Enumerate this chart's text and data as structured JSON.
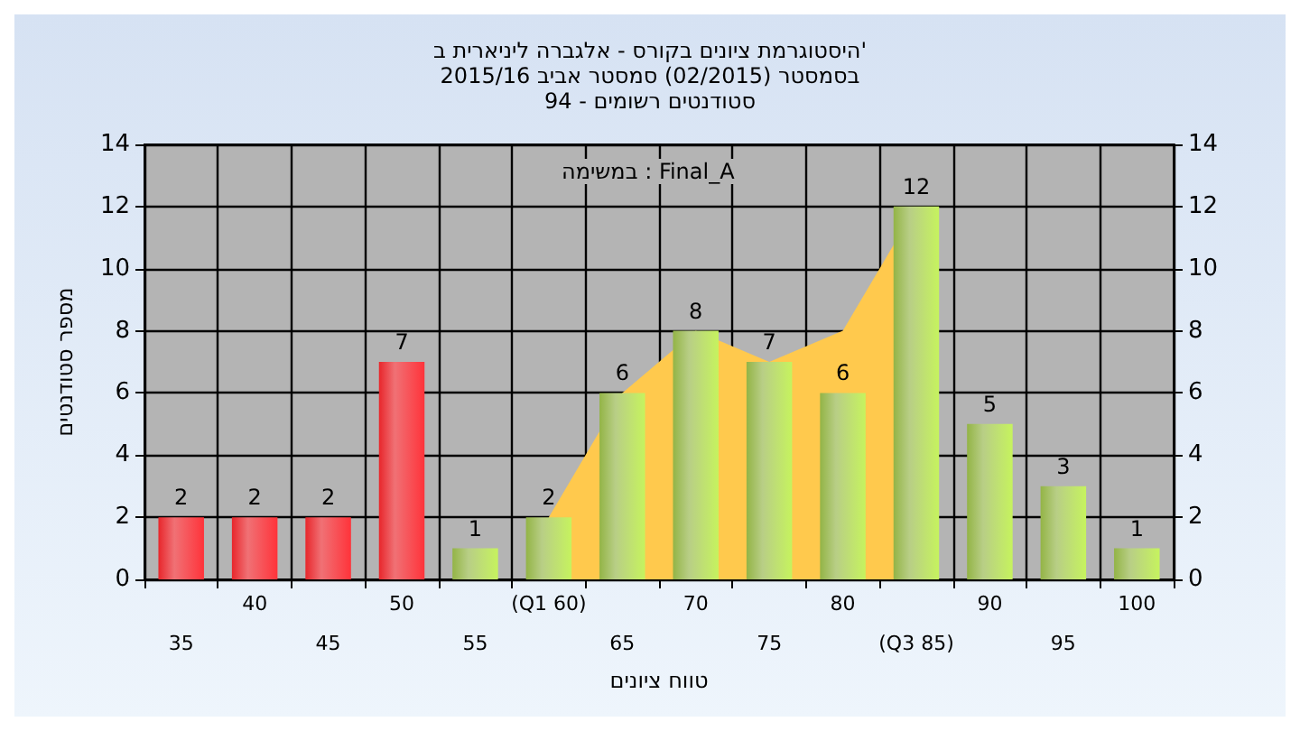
{
  "chart_data": {
    "type": "bar",
    "title": "היסטוגרמת ציונים בקורס - אלגברה ליניארית ב'\nבסמסטר (02/2015) סמסטר אביב 2015/16\nסטודנטים רשומים - 94",
    "xlabel": "טווח ציונים",
    "ylabel": "מספר סטודנטים",
    "annotations": [
      "במשימה : Final_A"
    ],
    "categories": [
      "35",
      "40",
      "45",
      "50",
      "55",
      "(Q1 60)",
      "65",
      "70",
      "75",
      "80",
      "(Q3 85)",
      "90",
      "95",
      "100"
    ],
    "series": [
      {
        "type": "area",
        "color": "#ffc94d",
        "values": [
          null,
          null,
          null,
          null,
          null,
          2,
          6,
          8,
          7,
          8,
          12,
          null,
          null,
          null
        ],
        "value_labels": [
          null,
          null,
          null,
          null,
          null,
          null,
          null,
          null,
          null,
          null,
          null,
          null,
          null,
          null
        ]
      },
      {
        "values": [
          2,
          2,
          2,
          7,
          1,
          2,
          6,
          8,
          7,
          6,
          12,
          5,
          3,
          1
        ],
        "colors": [
          "#e8262b",
          "#e8262b",
          "#e8262b",
          "#e8262b",
          "#93b446",
          "#93b446",
          "#93b446",
          "#93b446",
          "#93b446",
          "#93b446",
          "#93b446",
          "#93b446",
          "#93b446",
          "#93b446"
        ]
      }
    ],
    "data_labels": true,
    "ylim": [
      0,
      14
    ],
    "yticks": [
      0,
      2,
      4,
      6,
      8,
      10,
      12,
      14
    ],
    "y2lim": [
      0,
      14
    ],
    "y2ticks": [
      0,
      2,
      4,
      6,
      8,
      10,
      12,
      14
    ],
    "grid": true
  }
}
